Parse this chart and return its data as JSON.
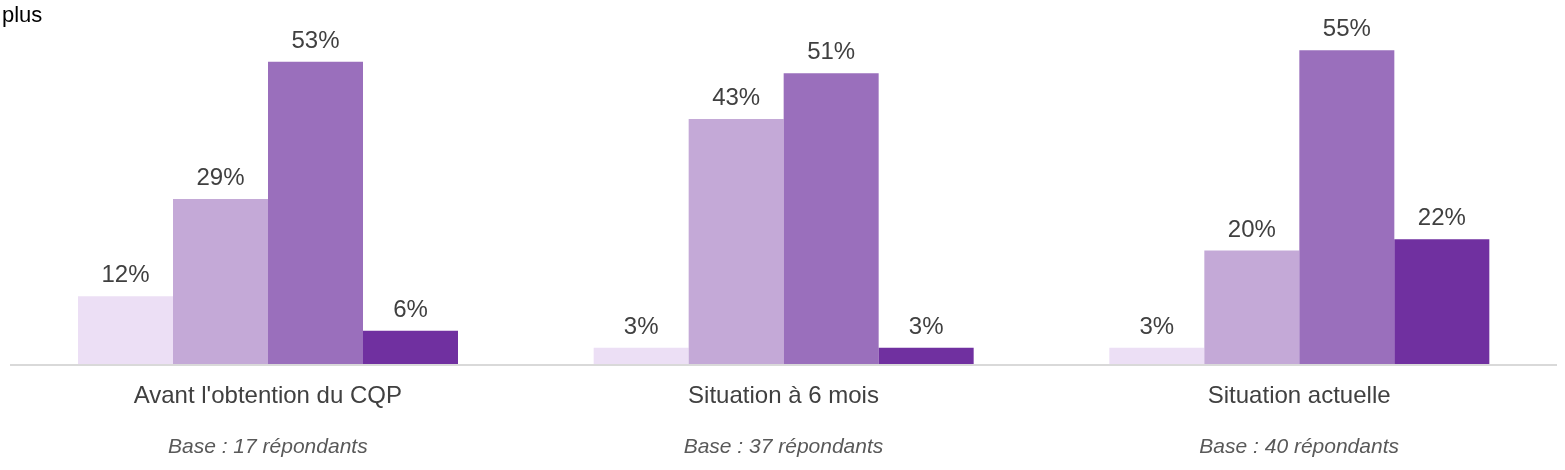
{
  "chart_data": {
    "type": "bar",
    "categories": [
      "Avant l'obtention du CQP",
      "Situation à 6 mois",
      "Situation actuelle"
    ],
    "series": [
      {
        "color": "#ecdff5",
        "values": [
          12,
          3,
          3
        ],
        "value_labels": [
          "12%",
          "3%",
          "3%"
        ]
      },
      {
        "color": "#c4a9d7",
        "values": [
          29,
          43,
          20
        ],
        "value_labels": [
          "29%",
          "43%",
          "20%"
        ]
      },
      {
        "color": "#9a6fbc",
        "values": [
          53,
          51,
          55
        ],
        "value_labels": [
          "53%",
          "51%",
          "55%"
        ]
      },
      {
        "color": "#7030a0",
        "values": [
          6,
          3,
          22
        ],
        "value_labels": [
          "6%",
          "3%",
          "22%"
        ]
      }
    ],
    "annotations": [
      "plus",
      "Base : 17 répondants",
      "Base : 37 répondants",
      "Base : 40 répondants"
    ],
    "grid": false,
    "legend": false
  }
}
